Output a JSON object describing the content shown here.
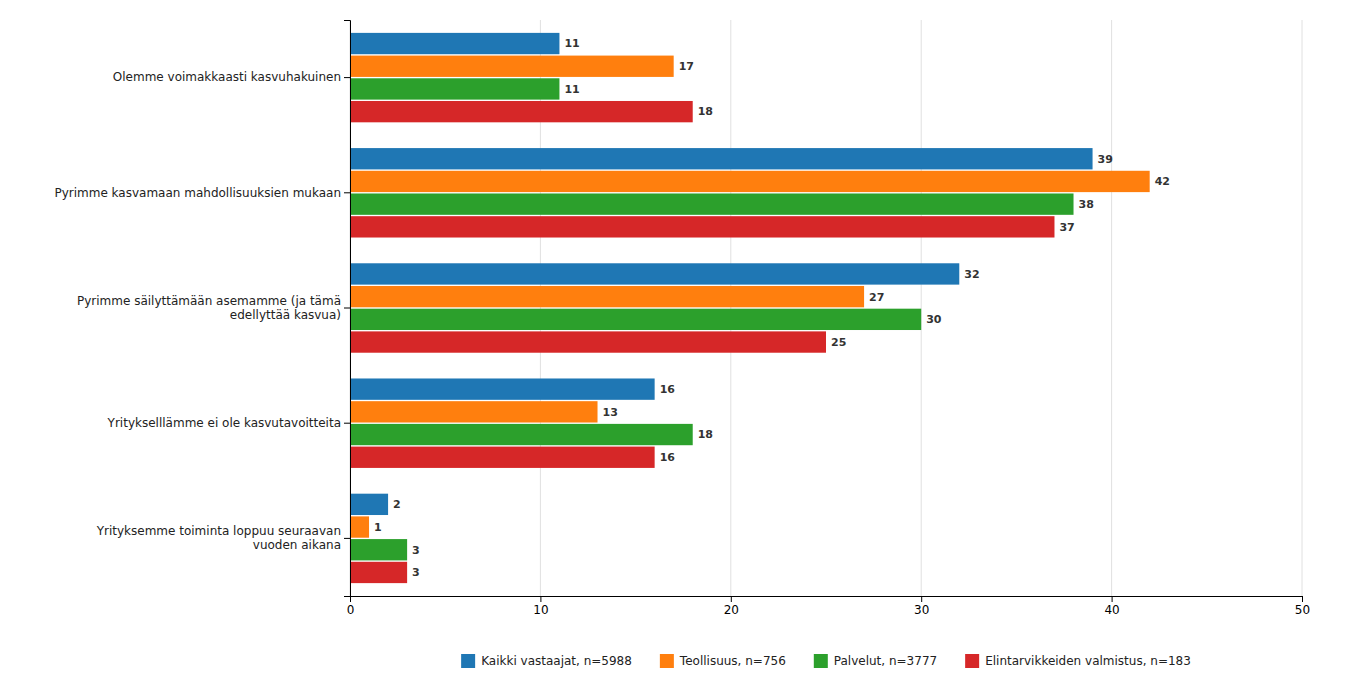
{
  "chart_data": {
    "type": "bar",
    "orientation": "horizontal",
    "categories": [
      "Olemme voimakkaasti kasvuhakuinen",
      "Pyrimme kasvamaan mahdollisuuksien mukaan",
      "Pyrimme säilyttämään asemamme (ja tämä\nedellyttää kasvua)",
      "Yritykselllämme ei ole kasvutavoitteita",
      "Yrityksemme toiminta loppuu seuraavan\nvuoden aikana"
    ],
    "series": [
      {
        "name": "Kaikki vastaajat, n=5988",
        "values": [
          11,
          39,
          32,
          16,
          2
        ]
      },
      {
        "name": "Teollisuus, n=756",
        "values": [
          17,
          42,
          27,
          13,
          1
        ]
      },
      {
        "name": "Palvelut, n=3777",
        "values": [
          11,
          38,
          30,
          18,
          3
        ]
      },
      {
        "name": "Elintarvikkeiden valmistus, n=183",
        "values": [
          18,
          37,
          25,
          16,
          3
        ]
      }
    ],
    "xlim": [
      0,
      50
    ],
    "xticks": [
      0,
      10,
      20,
      30,
      40,
      50
    ],
    "grid": true,
    "data_labels": true,
    "legend": "bottom"
  }
}
